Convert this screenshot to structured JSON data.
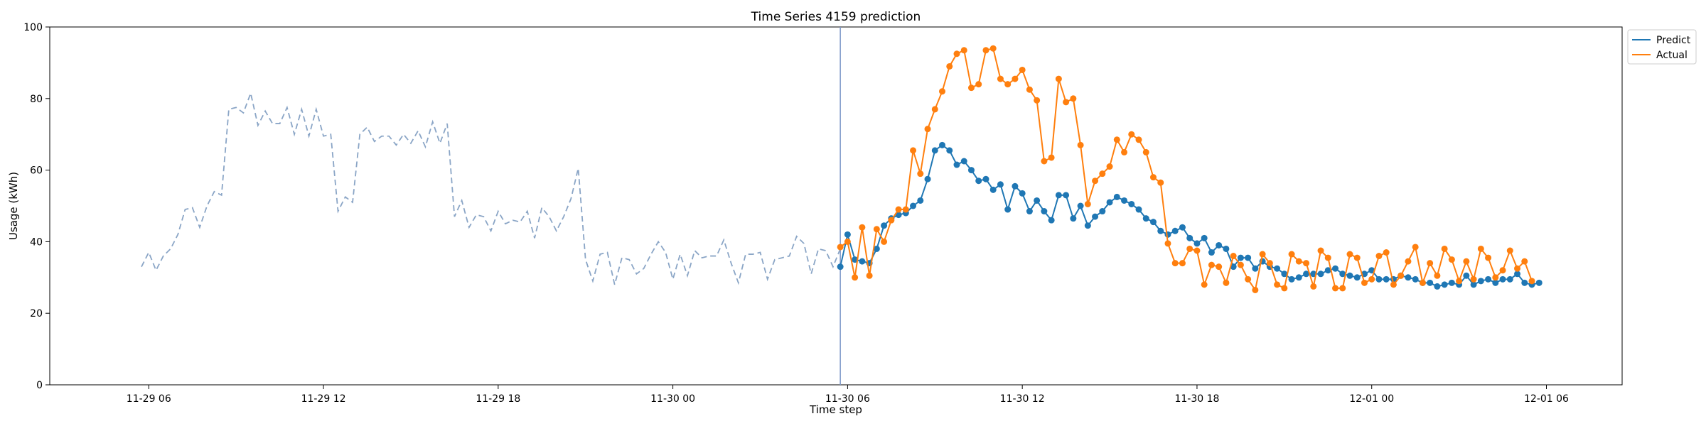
{
  "chart_data": {
    "type": "line",
    "title": "Time Series 4159 prediction",
    "xlabel": "Time step",
    "ylabel": "Usage (kWh)",
    "ylim": [
      0,
      100
    ],
    "yticks": [
      0,
      20,
      40,
      60,
      80,
      100
    ],
    "x_unit": "hours since 2023-11-29 00:00 (15-min steps)",
    "xlim": [
      2.6,
      56.6
    ],
    "xticks": [
      {
        "x": 6,
        "label": "11-29 06"
      },
      {
        "x": 12,
        "label": "11-29 12"
      },
      {
        "x": 18,
        "label": "11-29 18"
      },
      {
        "x": 24,
        "label": "11-30 00"
      },
      {
        "x": 30,
        "label": "11-30 06"
      },
      {
        "x": 36,
        "label": "11-30 12"
      },
      {
        "x": 42,
        "label": "11-30 18"
      },
      {
        "x": 48,
        "label": "12-01 00"
      },
      {
        "x": 54,
        "label": "12-01 06"
      }
    ],
    "forecast_start_x": 29.75,
    "history": {
      "name": "History",
      "color": "#8aa5c6",
      "style": "dashed",
      "x_start": 5.75,
      "x_step": 0.25,
      "values": [
        33,
        37,
        32,
        36,
        38,
        42,
        49,
        49.5,
        44,
        50,
        54,
        53,
        77,
        77.5,
        76,
        81.5,
        72.5,
        76.5,
        73,
        73,
        77.5,
        70,
        77,
        69.5,
        77,
        69.5,
        70,
        48.5,
        52.5,
        51,
        70,
        72,
        68,
        69.5,
        69.5,
        67,
        70,
        67.5,
        71,
        66.5,
        73.5,
        67.5,
        73,
        47,
        51.5,
        44,
        47.5,
        47,
        43,
        48.5,
        45,
        46,
        45.5,
        48.5,
        41,
        49.5,
        47,
        43,
        47,
        52,
        60.5,
        35,
        29,
        36.5,
        37,
        28,
        35.5,
        35,
        31,
        32.5,
        36.5,
        40,
        37,
        29.5,
        36.5,
        30.5,
        37.5,
        35.5,
        36,
        36,
        40.5,
        34,
        28.5,
        36.5,
        36.5,
        37,
        29.5,
        35,
        35.5,
        36,
        41.5,
        39.5,
        31,
        38,
        37.5,
        33,
        38
      ]
    },
    "series": [
      {
        "name": "Predict",
        "color": "#1f77b4",
        "x_start": 29.75,
        "x_step": 0.25,
        "values": [
          33,
          42,
          35,
          34.5,
          34,
          38,
          44.5,
          46.5,
          47.5,
          48,
          50,
          51.5,
          57.5,
          65.5,
          67,
          65.5,
          61.5,
          62.5,
          60,
          57,
          57.5,
          54.5,
          56,
          49,
          55.5,
          53.5,
          48.5,
          51.5,
          48.5,
          46,
          53,
          53,
          46.5,
          50,
          44.5,
          47,
          48.5,
          51,
          52.5,
          51.5,
          50.5,
          49,
          46.5,
          45.5,
          43,
          42,
          43,
          44,
          41,
          39.5,
          41,
          37,
          39,
          38,
          33,
          35.5,
          35.5,
          32.5,
          34.5,
          33,
          32.5,
          31,
          29.5,
          30,
          31,
          31,
          31,
          32,
          32.5,
          31,
          30.5,
          30,
          31,
          32,
          29.5,
          29.5,
          29.5,
          30.5,
          30,
          29.5,
          28.5,
          28.5,
          27.5,
          28,
          28.5,
          28,
          30.5,
          28,
          29,
          29.5,
          28.5,
          29.5,
          29.5,
          31,
          28.5,
          28,
          28.5
        ]
      },
      {
        "name": "Actual",
        "color": "#ff7f0e",
        "x_start": 29.75,
        "x_step": 0.25,
        "values": [
          38.5,
          40,
          30,
          44,
          30.5,
          43.5,
          40,
          46,
          49,
          49,
          65.5,
          59,
          71.5,
          77,
          82,
          89,
          92.5,
          93.5,
          83,
          84,
          93.5,
          94,
          85.5,
          84,
          85.5,
          88,
          82.5,
          79.5,
          62.5,
          63.5,
          85.5,
          79,
          80,
          67,
          50.5,
          57,
          59,
          61,
          68.5,
          65,
          70,
          68.5,
          65,
          58,
          56.5,
          39.5,
          34,
          34,
          38,
          37.5,
          28,
          33.5,
          33,
          28.5,
          36,
          33.5,
          29.5,
          26.5,
          36.5,
          34,
          28,
          27,
          36.5,
          34.5,
          34,
          27.5,
          37.5,
          35.5,
          27,
          27,
          36.5,
          35.5,
          28.5,
          29.5,
          36,
          37,
          28,
          30.5,
          34.5,
          38.5,
          28.5,
          34,
          30.5,
          38,
          35,
          29,
          34.5,
          29.5,
          38,
          35.5,
          30,
          32,
          37.5,
          32.5,
          34.5,
          29
        ]
      }
    ],
    "legend": {
      "position": "outside-top-right",
      "entries": [
        "Predict",
        "Actual"
      ]
    }
  }
}
